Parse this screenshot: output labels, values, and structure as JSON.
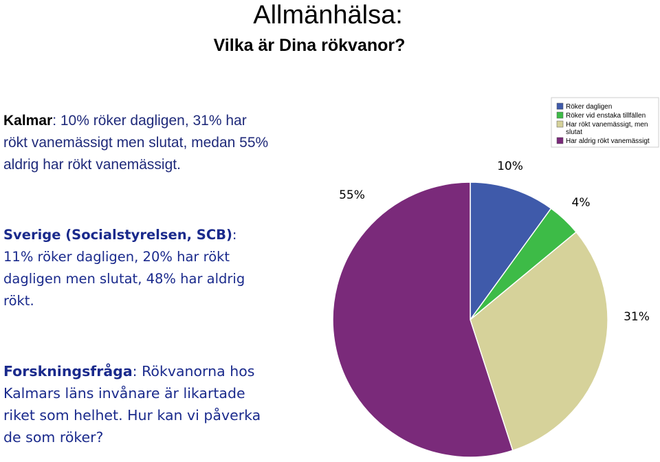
{
  "header": {
    "title": "Allmänhälsa:",
    "subtitle": "Vilka är Dina rökvanor?"
  },
  "kalmar": {
    "label": "Kalmar",
    "text": ": 10% röker dagligen, 31% har rökt vanemässigt men slutat, medan 55% aldrig har rökt vanemässigt."
  },
  "sverige": {
    "label": "Sverige (Socialstyrelsen, SCB)",
    "text": ": 11% röker dagligen, 20% har rökt dagligen men slutat, 48% har aldrig rökt."
  },
  "forskning": {
    "label": "Forskningsfråga",
    "text": ": Rökvanorna hos Kalmars läns invånare är likartade riket som helhet. Hur kan vi påverka de som röker?"
  },
  "chart_data": {
    "type": "pie",
    "title": "",
    "legend_position": "top-right",
    "slices": [
      {
        "name": "Röker dagligen",
        "value": 10,
        "label": "10%",
        "color": "#3f5aaa"
      },
      {
        "name": "Röker vid enstaka tillfällen",
        "value": 4,
        "label": "4%",
        "color": "#3dbb47"
      },
      {
        "name": "Har rökt vanemässigt, men slutat",
        "value": 31,
        "label": "31%",
        "color": "#d6d29a"
      },
      {
        "name": "Har aldrig rökt vanemässigt",
        "value": 55,
        "label": "55%",
        "color": "#7a2a7a"
      }
    ]
  }
}
